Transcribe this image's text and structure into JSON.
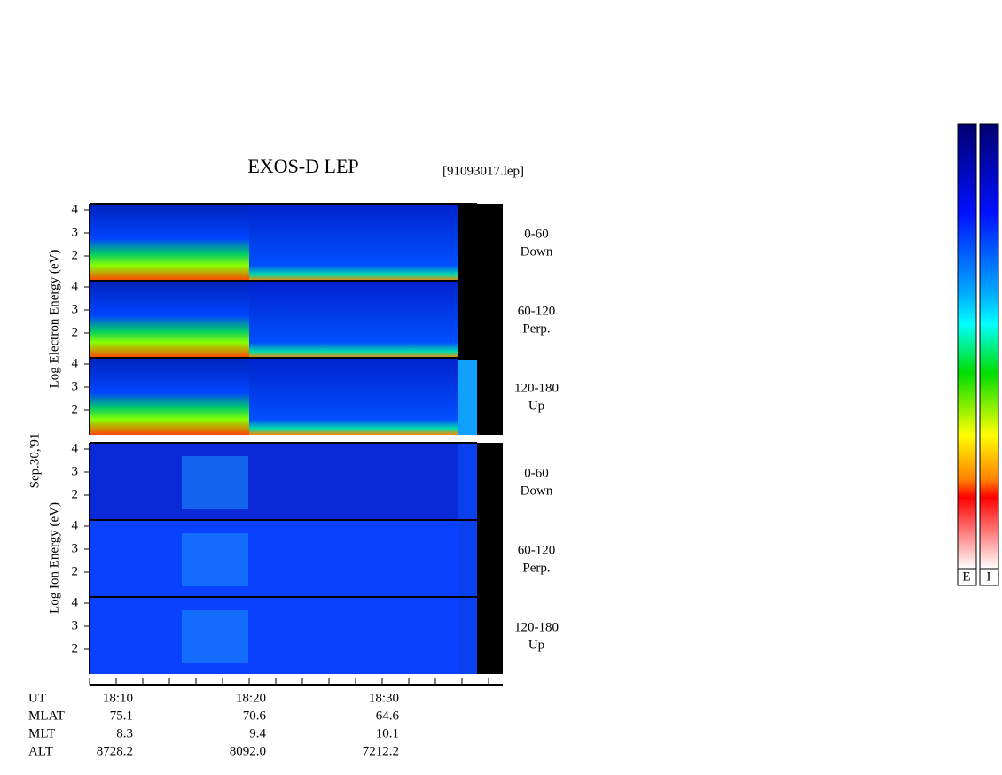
{
  "header": {
    "title": "EXOS-D LEP",
    "file": "[91093017.lep]"
  },
  "date": "Sep.30,'91",
  "electron": {
    "axis_label": "Log Electron Energy (eV)",
    "panels": [
      {
        "ticks": [
          "4",
          "3",
          "2"
        ],
        "angle": "0-60",
        "dir": "Down"
      },
      {
        "ticks": [
          "4",
          "3",
          "2"
        ],
        "angle": "60-120",
        "dir": "Perp."
      },
      {
        "ticks": [
          "4",
          "3",
          "2"
        ],
        "angle": "120-180",
        "dir": "Up"
      }
    ]
  },
  "ion": {
    "axis_label": "Log Ion Energy (eV)",
    "panels": [
      {
        "ticks": [
          "4",
          "3",
          "2"
        ],
        "angle": "0-60",
        "dir": "Down"
      },
      {
        "ticks": [
          "4",
          "3",
          "2"
        ],
        "angle": "60-120",
        "dir": "Perp."
      },
      {
        "ticks": [
          "4",
          "3",
          "2"
        ],
        "angle": "120-180",
        "dir": "Up"
      }
    ]
  },
  "table": {
    "row_labels": [
      "UT",
      "MLAT",
      "MLT",
      "ALT"
    ],
    "columns": [
      [
        "18:10",
        "75.1",
        "8.3",
        "8728.2"
      ],
      [
        "18:20",
        "70.6",
        "9.4",
        "8092.0"
      ],
      [
        "18:30",
        "64.6",
        "10.1",
        "7212.2"
      ]
    ]
  },
  "colorbars": [
    "E",
    "I"
  ]
}
